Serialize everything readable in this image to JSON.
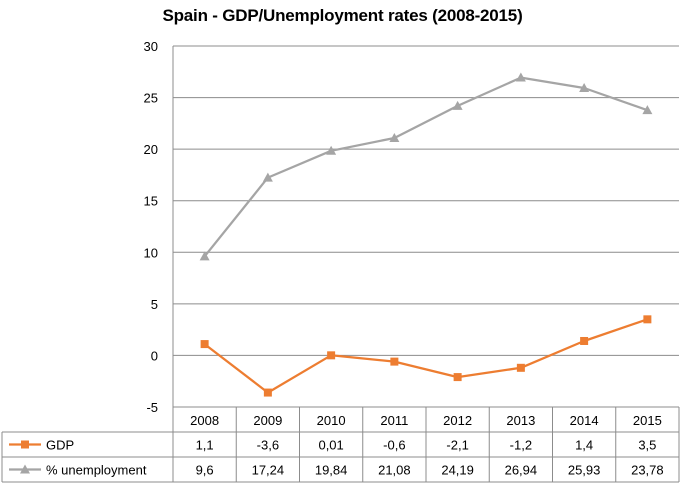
{
  "chart_data": {
    "type": "line",
    "title": "Spain - GDP/Unemployment rates (2008-2015)",
    "categories": [
      "2008",
      "2009",
      "2010",
      "2011",
      "2012",
      "2013",
      "2014",
      "2015"
    ],
    "ylim": [
      -5,
      30
    ],
    "yticks": [
      "30",
      "25",
      "20",
      "15",
      "10",
      "5",
      "0",
      "-5"
    ],
    "ytick_values": [
      30,
      25,
      20,
      15,
      10,
      5,
      0,
      -5
    ],
    "grid": true,
    "data_table": true,
    "series": [
      {
        "name": "GDP",
        "marker": "square",
        "color": "#ED7D31",
        "values": [
          1.1,
          -3.6,
          0.01,
          -0.6,
          -2.1,
          -1.2,
          1.4,
          3.5
        ],
        "labels": [
          "1,1",
          "-3,6",
          "0,01",
          "-0,6",
          "-2,1",
          "-1,2",
          "1,4",
          "3,5"
        ]
      },
      {
        "name": "% unemployment",
        "marker": "triangle",
        "color": "#A5A5A5",
        "values": [
          9.6,
          17.24,
          19.84,
          21.08,
          24.19,
          26.94,
          25.93,
          23.78
        ],
        "labels": [
          "9,6",
          "17,24",
          "19,84",
          "21,08",
          "24,19",
          "26,94",
          "25,93",
          "23,78"
        ]
      }
    ]
  }
}
